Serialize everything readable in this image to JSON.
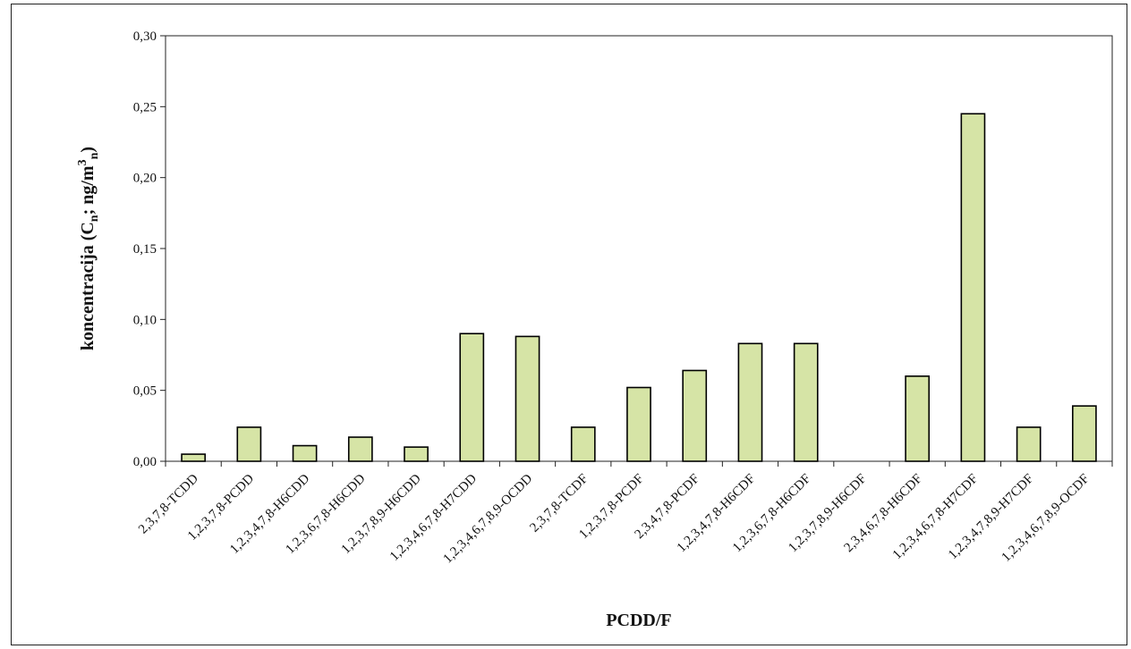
{
  "chart_data": {
    "type": "bar",
    "title": "",
    "xlabel": "PCDD/F",
    "ylabel_parts": {
      "prefix": "koncentracija (C",
      "sub1": "n",
      "mid": "; ng/m",
      "sup": "3",
      "sub2": "n",
      "suffix": ")"
    },
    "ylim": [
      0,
      0.3
    ],
    "yticks": [
      0,
      0.05,
      0.1,
      0.15,
      0.2,
      0.25,
      0.3
    ],
    "ytick_labels": [
      "0,00",
      "0,05",
      "0,10",
      "0,15",
      "0,20",
      "0,25",
      "0,30"
    ],
    "bar_color": "#d6e4a6",
    "bar_edge_color": "#000000",
    "grid": false,
    "legend": "none",
    "categories": [
      "2,3,7,8-TCDD",
      "1,2,3,7,8-PCDD",
      "1,2,3,4,7,8-H6CDD",
      "1,2,3,6,7,8-H6CDD",
      "1,2,3,7,8,9-H6CDD",
      "1,2,3,4,6,7,8-H7CDD",
      "1,2,3,4,6,7,8,9-OCDD",
      "2,3,7,8-TCDF",
      "1,2,3,7,8-PCDF",
      "2,3,4,7,8-PCDF",
      "1,2,3,4,7,8-H6CDF",
      "1,2,3,6,7,8-H6CDF",
      "1,2,3,7,8,9-H6CDF",
      "2,3,4,6,7,8-H6CDF",
      "1,2,3,4,6,7,8-H7CDF",
      "1,2,3,4,7,8,9-H7CDF",
      "1,2,3,4,6,7,8,9-OCDF"
    ],
    "values": [
      0.005,
      0.024,
      0.011,
      0.017,
      0.01,
      0.09,
      0.088,
      0.024,
      0.052,
      0.064,
      0.083,
      0.083,
      0.0,
      0.06,
      0.245,
      0.024,
      0.039
    ]
  }
}
